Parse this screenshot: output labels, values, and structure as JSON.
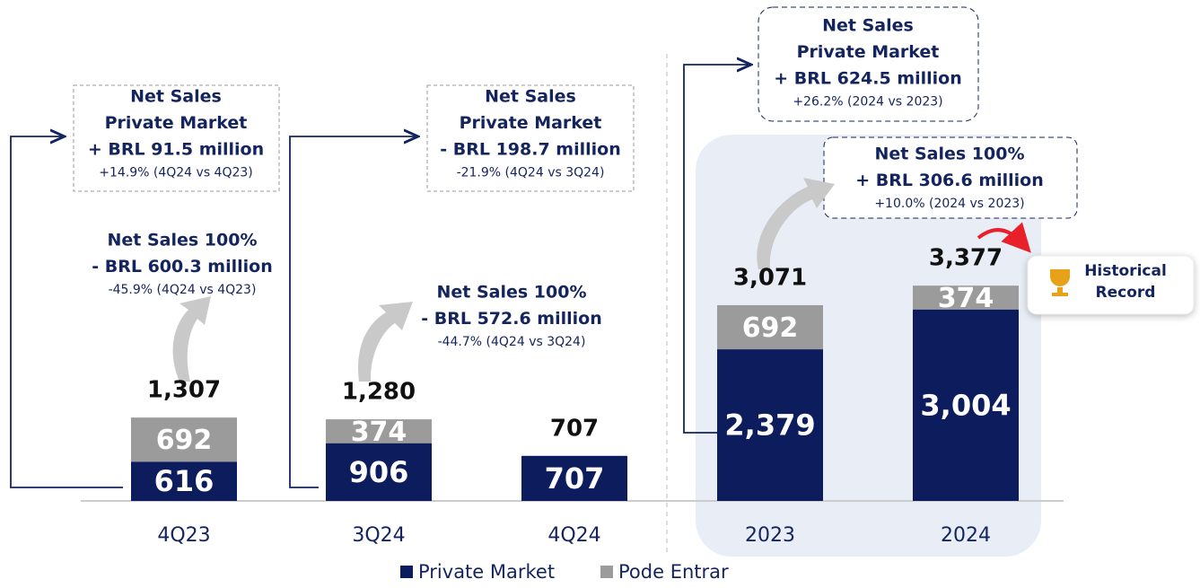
{
  "chart_data": {
    "type": "stacked-bar",
    "categories": [
      "4Q23",
      "3Q24",
      "4Q24",
      "2023",
      "2024"
    ],
    "series": [
      {
        "name": "Private Market",
        "color": "#0c1c5c",
        "values": [
          616,
          906,
          707,
          2379,
          3004
        ],
        "value_labels": [
          "616",
          "906",
          "707",
          "2,379",
          "3,004"
        ]
      },
      {
        "name": "Pode Entrar",
        "color": "#9b9b9b",
        "values": [
          692,
          374,
          null,
          692,
          374
        ],
        "value_labels": [
          "692",
          "374",
          null,
          "692",
          "374"
        ]
      }
    ],
    "totals": [
      1307,
      1280,
      707,
      3071,
      3377
    ],
    "total_labels": [
      "1,307",
      "1,280",
      "707",
      "3,071",
      "3,377"
    ],
    "ylim": [
      0,
      7000
    ],
    "legend": "bottom",
    "annotations": [
      {
        "lines": [
          "Net Sales",
          "Private Market",
          "+ BRL 91.5 million",
          "+14.9% (4Q24 vs 4Q23)"
        ]
      },
      {
        "lines": [
          "Net Sales 100%",
          "- BRL 600.3 million",
          "-45.9% (4Q24 vs 4Q23)"
        ]
      },
      {
        "lines": [
          "Net Sales",
          "Private Market",
          "- BRL 198.7 million",
          "-21.9% (4Q24 vs 3Q24)"
        ]
      },
      {
        "lines": [
          "Net Sales 100%",
          "- BRL 572.6 million",
          "-44.7% (4Q24 vs 3Q24)"
        ]
      },
      {
        "lines": [
          "Net Sales",
          "Private Market",
          "+ BRL 624.5 million",
          "+26.2% (2024 vs 2023)"
        ]
      },
      {
        "lines": [
          "Net Sales 100%",
          "+ BRL 306.6 million",
          "+10.0% (2024 vs 2023)"
        ]
      },
      {
        "lines": [
          "Historical",
          "Record"
        ]
      }
    ]
  }
}
